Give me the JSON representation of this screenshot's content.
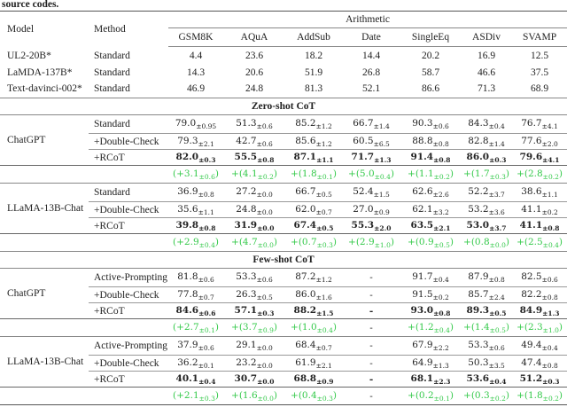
{
  "caption": "source codes.",
  "header": {
    "model": "Model",
    "method": "Method",
    "group": "Arithmetic",
    "columns": [
      "GSM8K",
      "AQuA",
      "AddSub",
      "Date",
      "SingleEq",
      "ASDiv",
      "SVAMP"
    ]
  },
  "baselines": [
    {
      "model": "UL2-20B*",
      "method": "Standard",
      "values": [
        "4.4",
        "23.6",
        "18.2",
        "14.4",
        "20.2",
        "16.9",
        "12.5"
      ]
    },
    {
      "model": "LaMDA-137B*",
      "method": "Standard",
      "values": [
        "14.3",
        "20.6",
        "51.9",
        "26.8",
        "58.7",
        "46.6",
        "37.5"
      ]
    },
    {
      "model": "Text-davinci-002*",
      "method": "Standard",
      "values": [
        "46.9",
        "24.8",
        "81.3",
        "52.1",
        "86.6",
        "71.3",
        "68.9"
      ]
    }
  ],
  "sections": [
    {
      "title": "Zero-shot CoT",
      "groups": [
        {
          "model": "ChatGPT",
          "rows": [
            {
              "method": "Standard",
              "cells": [
                [
                  "79.0",
                  "±0.95"
                ],
                [
                  "51.3",
                  "±0.6"
                ],
                [
                  "85.2",
                  "±1.2"
                ],
                [
                  "66.7",
                  "±1.4"
                ],
                [
                  "90.3",
                  "±0.6"
                ],
                [
                  "84.3",
                  "±0.4"
                ],
                [
                  "76.7",
                  "±4.1"
                ]
              ]
            },
            {
              "method": "+Double-Check",
              "cells": [
                [
                  "79.3",
                  "±2.1"
                ],
                [
                  "42.7",
                  "±0.6"
                ],
                [
                  "85.6",
                  "±1.2"
                ],
                [
                  "60.5",
                  "±6.5"
                ],
                [
                  "88.8",
                  "±0.8"
                ],
                [
                  "82.8",
                  "±1.4"
                ],
                [
                  "77.6",
                  "±2.0"
                ]
              ]
            },
            {
              "method": "+RCoT",
              "bold": true,
              "cells": [
                [
                  "82.0",
                  "±0.3"
                ],
                [
                  "55.5",
                  "±0.8"
                ],
                [
                  "87.1",
                  "±1.1"
                ],
                [
                  "71.7",
                  "±1.3"
                ],
                [
                  "91.4",
                  "±0.8"
                ],
                [
                  "86.0",
                  "±0.3"
                ],
                [
                  "79.6",
                  "±4.1"
                ]
              ]
            }
          ],
          "delta": [
            [
              "(+3.1",
              "±0.6",
              ")"
            ],
            [
              "+(4.1",
              "±0.2",
              ")"
            ],
            [
              "+(1.8",
              "±0.1",
              ")"
            ],
            [
              "+(5.0",
              "±0.4",
              ")"
            ],
            [
              "+(1.1",
              "±0.2",
              ")"
            ],
            [
              "+(1.7",
              "±0.3",
              ")"
            ],
            [
              "+(2.8",
              "±0.2",
              ")"
            ]
          ]
        },
        {
          "model": "LLaMA-13B-Chat",
          "rows": [
            {
              "method": "Standard",
              "cells": [
                [
                  "36.9",
                  "±0.8"
                ],
                [
                  "27.2",
                  "±0.0"
                ],
                [
                  "66.7",
                  "±0.5"
                ],
                [
                  "52.4",
                  "±1.5"
                ],
                [
                  "62.6",
                  "±2.6"
                ],
                [
                  "52.2",
                  "±3.7"
                ],
                [
                  "38.6",
                  "±1.1"
                ]
              ]
            },
            {
              "method": "+Double-Check",
              "cells": [
                [
                  "35.6",
                  "±1.1"
                ],
                [
                  "24.8",
                  "±0.0"
                ],
                [
                  "62.0",
                  "±0.7"
                ],
                [
                  "27.0",
                  "±0.9"
                ],
                [
                  "62.1",
                  "±3.2"
                ],
                [
                  "53.2",
                  "±3.6"
                ],
                [
                  "41.1",
                  "±0.2"
                ]
              ]
            },
            {
              "method": "+RCoT",
              "bold": true,
              "cells": [
                [
                  "39.8",
                  "±0.8"
                ],
                [
                  "31.9",
                  "±0.0"
                ],
                [
                  "67.4",
                  "±0.5"
                ],
                [
                  "55.3",
                  "±2.0"
                ],
                [
                  "63.5",
                  "±2.1"
                ],
                [
                  "53.0",
                  "±3.7"
                ],
                [
                  "41.1",
                  "±0.8"
                ]
              ]
            }
          ],
          "delta": [
            [
              "(+2.9",
              "±0.4",
              ")"
            ],
            [
              "+(4.7",
              "±0.0",
              ")"
            ],
            [
              "+(0.7",
              "±0.3",
              ")"
            ],
            [
              "+(2.9",
              "±1.0",
              ")"
            ],
            [
              "+(0.9",
              "±0.5",
              ")"
            ],
            [
              "+(0.8",
              "±0.0",
              ")"
            ],
            [
              "+(2.5",
              "±0.4",
              ")"
            ]
          ]
        }
      ]
    },
    {
      "title": "Few-shot CoT",
      "groups": [
        {
          "model": "ChatGPT",
          "rows": [
            {
              "method": "Active-Prompting",
              "cells": [
                [
                  "81.8",
                  "±0.6"
                ],
                [
                  "53.3",
                  "±0.6"
                ],
                [
                  "87.2",
                  "±1.2"
                ],
                [
                  "-",
                  ""
                ],
                [
                  "91.7",
                  "±0.4"
                ],
                [
                  "87.9",
                  "±0.8"
                ],
                [
                  "82.5",
                  "±0.6"
                ]
              ]
            },
            {
              "method": "+Double-Check",
              "cells": [
                [
                  "77.8",
                  "±0.7"
                ],
                [
                  "26.3",
                  "±0.5"
                ],
                [
                  "86.0",
                  "±1.6"
                ],
                [
                  "-",
                  ""
                ],
                [
                  "91.5",
                  "±0.2"
                ],
                [
                  "85.7",
                  "±2.4"
                ],
                [
                  "82.2",
                  "±0.8"
                ]
              ]
            },
            {
              "method": "+RCoT",
              "bold": true,
              "cells": [
                [
                  "84.6",
                  "±0.6"
                ],
                [
                  "57.1",
                  "±0.3"
                ],
                [
                  "88.2",
                  "±1.5"
                ],
                [
                  "-",
                  ""
                ],
                [
                  "93.0",
                  "±0.8"
                ],
                [
                  "89.3",
                  "±0.5"
                ],
                [
                  "84.9",
                  "±1.3"
                ]
              ]
            }
          ],
          "delta": [
            [
              "(+2.7",
              "±0.1",
              ")"
            ],
            [
              "+(3.7",
              "±0.9",
              ")"
            ],
            [
              "+(1.0",
              "±0.4",
              ")"
            ],
            [
              "-",
              "",
              ""
            ],
            [
              "+(1.2",
              "±0.4",
              ")"
            ],
            [
              "+(1.4",
              "±0.5",
              ")"
            ],
            [
              "+(2.3",
              "±1.0",
              ")"
            ]
          ]
        },
        {
          "model": "LLaMA-13B-Chat",
          "rows": [
            {
              "method": "Active-Prompting",
              "cells": [
                [
                  "37.9",
                  "±0.6"
                ],
                [
                  "29.1",
                  "±0.0"
                ],
                [
                  "68.4",
                  "±0.7"
                ],
                [
                  "-",
                  ""
                ],
                [
                  "67.9",
                  "±2.2"
                ],
                [
                  "53.3",
                  "±0.6"
                ],
                [
                  "49.4",
                  "±0.4"
                ]
              ]
            },
            {
              "method": "+Double-Check",
              "cells": [
                [
                  "36.2",
                  "±0.1"
                ],
                [
                  "23.2",
                  "±0.0"
                ],
                [
                  "61.9",
                  "±2.1"
                ],
                [
                  "-",
                  ""
                ],
                [
                  "64.9",
                  "±1.3"
                ],
                [
                  "50.3",
                  "±3.5"
                ],
                [
                  "47.4",
                  "±0.8"
                ]
              ]
            },
            {
              "method": "+RCoT",
              "bold": true,
              "cells": [
                [
                  "40.1",
                  "±0.4"
                ],
                [
                  "30.7",
                  "±0.0"
                ],
                [
                  "68.8",
                  "±0.9"
                ],
                [
                  "-",
                  ""
                ],
                [
                  "68.1",
                  "±2.3"
                ],
                [
                  "53.6",
                  "±0.4"
                ],
                [
                  "51.2",
                  "±0.3"
                ]
              ]
            }
          ],
          "delta": [
            [
              "(+2.1",
              "±0.3",
              ")"
            ],
            [
              "+(1.6",
              "±0.0",
              ")"
            ],
            [
              "+(0.4",
              "±0.3",
              ")"
            ],
            [
              "-",
              "",
              ""
            ],
            [
              "+(0.2",
              "±0.1",
              ")"
            ],
            [
              "+(0.3",
              "±0.2",
              ")"
            ],
            [
              "+(1.8",
              "±0.2",
              ")"
            ]
          ]
        }
      ]
    }
  ],
  "colors": {
    "improvement": "#34c94a"
  }
}
